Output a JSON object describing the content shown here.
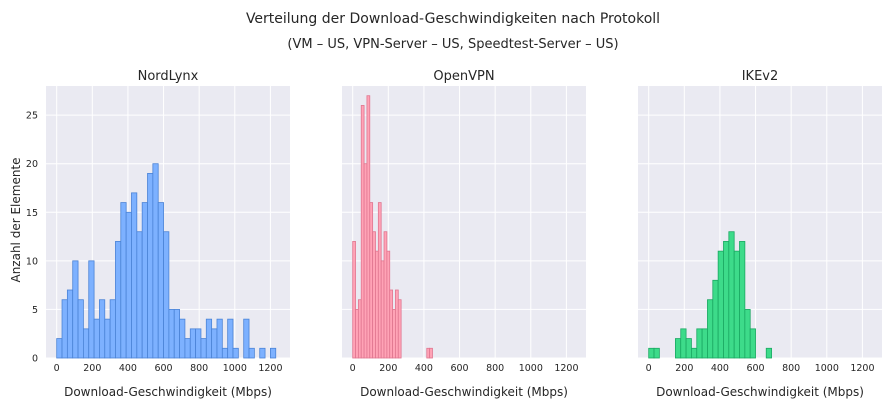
{
  "figure": {
    "title_line1": "Verteilung der Download-Geschwindigkeiten nach Protokoll",
    "title_line2": "(VM – US, VPN-Server – US, Speedtest-Server – US)",
    "ylabel": "Anzahl der Elemente"
  },
  "colors": {
    "panel_bg": "#eaeaf2",
    "nordlynx_fill": "#7db1ff",
    "nordlynx_edge": "#4b83d6",
    "openvpn_fill": "#ffa3b6",
    "openvpn_edge": "#e07690",
    "ikev2_fill": "#3ddb8a",
    "ikev2_edge": "#1aa862"
  },
  "chart_data": [
    {
      "type": "bar",
      "subtype": "histogram",
      "title": "NordLynx",
      "xlabel": "Download-Geschwindigkeit (Mbps)",
      "xlim": [
        -60,
        1310
      ],
      "ylim": [
        0,
        28
      ],
      "xticks": [
        0,
        200,
        400,
        600,
        800,
        1000,
        1200
      ],
      "yticks": [
        0,
        5,
        10,
        15,
        20,
        25
      ],
      "bin_width": 30,
      "bin_start": 0,
      "counts": [
        2,
        6,
        7,
        10,
        6,
        3,
        10,
        4,
        6,
        4,
        6,
        12,
        16,
        15,
        17,
        13,
        16,
        19,
        20,
        16,
        13,
        5,
        5,
        4,
        2,
        3,
        3,
        2,
        4,
        3,
        4,
        1,
        4,
        1,
        0,
        4,
        1,
        0,
        1,
        0,
        1
      ]
    },
    {
      "type": "bar",
      "subtype": "histogram",
      "title": "OpenVPN",
      "xlabel": "Download-Geschwindigkeit (Mbps)",
      "xlim": [
        -60,
        1310
      ],
      "ylim": [
        0,
        28
      ],
      "xticks": [
        0,
        200,
        400,
        600,
        800,
        1000,
        1200
      ],
      "yticks": [
        0,
        5,
        10,
        15,
        20,
        25
      ],
      "bin_width": 16,
      "bin_start": 0,
      "counts": [
        12,
        5,
        6,
        26,
        20,
        27,
        16,
        13,
        11,
        16,
        10,
        13,
        11,
        7,
        5,
        7,
        6,
        0,
        0,
        0,
        0,
        0,
        0,
        0,
        0,
        0,
        1,
        1
      ]
    },
    {
      "type": "bar",
      "subtype": "histogram",
      "title": "IKEv2",
      "xlabel": "Download-Geschwindigkeit (Mbps)",
      "xlim": [
        -60,
        1310
      ],
      "ylim": [
        0,
        28
      ],
      "xticks": [
        0,
        200,
        400,
        600,
        800,
        1000,
        1200
      ],
      "yticks": [
        0,
        5,
        10,
        15,
        20,
        25
      ],
      "bin_width": 30,
      "bin_start": 0,
      "counts": [
        1,
        1,
        0,
        0,
        0,
        2,
        3,
        2,
        1,
        3,
        3,
        6,
        8,
        11,
        12,
        13,
        11,
        12,
        5,
        3,
        0,
        0,
        1
      ]
    }
  ]
}
